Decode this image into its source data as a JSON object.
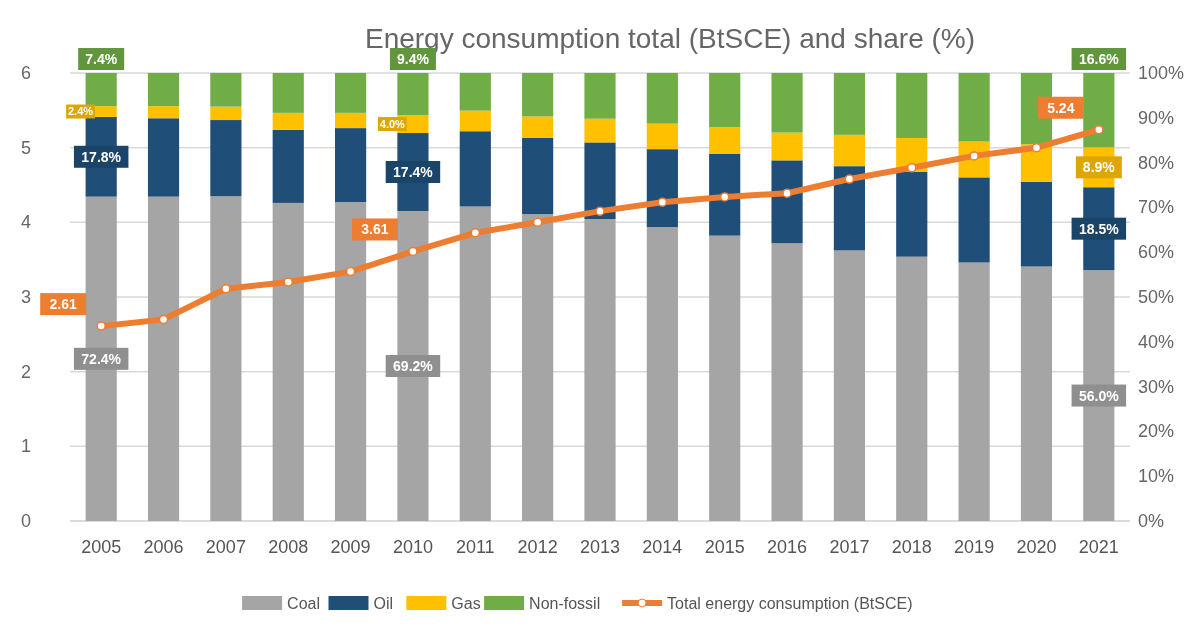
{
  "chart_data": {
    "type": "bar",
    "title": "Energy consumption total (BtSCE) and share (%)",
    "stacked": true,
    "grid": "y",
    "legend": "bottom",
    "marker": "circle",
    "categories": [
      "2005",
      "2006",
      "2007",
      "2008",
      "2009",
      "2010",
      "2011",
      "2012",
      "2013",
      "2014",
      "2015",
      "2016",
      "2017",
      "2018",
      "2019",
      "2020",
      "2021"
    ],
    "series": [
      {
        "name": "Coal",
        "color": "#a5a5a5",
        "axis": "y2",
        "values": [
          72.4,
          72.4,
          72.5,
          71.0,
          71.2,
          69.2,
          70.2,
          68.5,
          67.4,
          65.6,
          63.7,
          62.0,
          60.4,
          59.0,
          57.7,
          56.8,
          56.0
        ],
        "value_labels": [
          "72.4%",
          null,
          null,
          null,
          null,
          "69.2%",
          null,
          null,
          null,
          null,
          null,
          null,
          null,
          null,
          null,
          null,
          "56.0%"
        ]
      },
      {
        "name": "Oil",
        "color": "#1f4e79",
        "axis": "y2",
        "values": [
          17.8,
          17.5,
          17.0,
          16.3,
          16.5,
          17.4,
          16.8,
          17.0,
          17.1,
          17.4,
          18.3,
          18.5,
          18.8,
          18.9,
          19.0,
          18.9,
          18.5
        ],
        "value_labels": [
          "17.8%",
          null,
          null,
          null,
          null,
          "17.4%",
          null,
          null,
          null,
          null,
          null,
          null,
          null,
          null,
          null,
          null,
          "18.5%"
        ]
      },
      {
        "name": "Gas",
        "color": "#ffc000",
        "axis": "y2",
        "values": [
          2.4,
          2.7,
          3.0,
          3.8,
          3.4,
          4.0,
          4.6,
          4.8,
          5.3,
          5.7,
          5.9,
          6.2,
          7.0,
          7.6,
          8.0,
          8.4,
          8.9
        ],
        "value_labels": [
          "2.4%",
          null,
          null,
          null,
          null,
          "4.0%",
          null,
          null,
          null,
          null,
          null,
          null,
          null,
          null,
          null,
          null,
          "8.9%"
        ]
      },
      {
        "name": "Non-fossil",
        "color": "#70ad47",
        "axis": "y2",
        "values": [
          7.4,
          7.4,
          7.5,
          8.9,
          8.9,
          9.4,
          8.4,
          9.7,
          10.2,
          11.3,
          12.1,
          13.3,
          13.8,
          14.5,
          15.3,
          15.9,
          16.6
        ],
        "value_labels": [
          "7.4%",
          null,
          null,
          null,
          null,
          "9.4%",
          null,
          null,
          null,
          null,
          null,
          null,
          null,
          null,
          null,
          null,
          "16.6%"
        ]
      },
      {
        "name": "Total  energy consumption (BtSCE)",
        "type": "line",
        "color": "#ed7d31",
        "values": [
          2.61,
          2.7,
          3.11,
          3.2,
          3.34,
          3.61,
          3.86,
          4.0,
          4.15,
          4.27,
          4.34,
          4.39,
          4.58,
          4.73,
          4.89,
          5.0,
          5.24
        ],
        "value_labels": [
          "2.61",
          null,
          null,
          null,
          null,
          "3.61",
          null,
          null,
          null,
          null,
          null,
          null,
          null,
          null,
          null,
          null,
          "5.24"
        ]
      }
    ],
    "ylim": [
      0,
      6
    ],
    "yticks": [
      0,
      1,
      2,
      3,
      4,
      5,
      6
    ],
    "y2lim": [
      0,
      100
    ],
    "y2ticks": [
      {
        "value": 0,
        "label": "0%"
      },
      {
        "value": 10,
        "label": "10%"
      },
      {
        "value": 20,
        "label": "20%"
      },
      {
        "value": 30,
        "label": "30%"
      },
      {
        "value": 40,
        "label": "40%"
      },
      {
        "value": 50,
        "label": "50%"
      },
      {
        "value": 60,
        "label": "60%"
      },
      {
        "value": 70,
        "label": "70%"
      },
      {
        "value": 80,
        "label": "80%"
      },
      {
        "value": 90,
        "label": "90%"
      },
      {
        "value": 100,
        "label": "100%"
      }
    ]
  }
}
